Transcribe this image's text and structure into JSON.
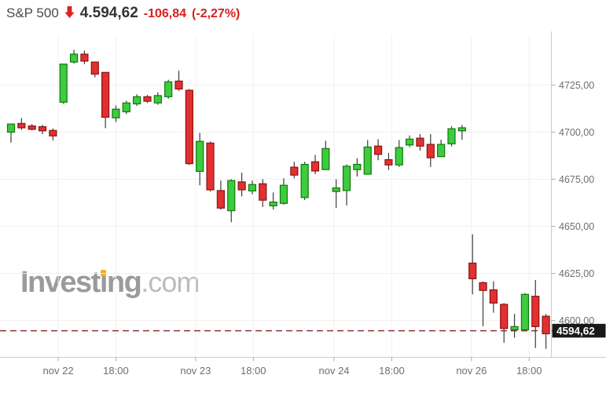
{
  "header": {
    "symbol": "S&P 500",
    "price": "4.594,62",
    "change": "-106,84",
    "change_pct": "(-2,27%)",
    "direction": "down"
  },
  "watermark": {
    "part1": "Invest",
    "accent_letter": "i",
    "part2": "ng",
    "suffix": ".com"
  },
  "colors": {
    "up_fill": "#3ecb3e",
    "up_stroke": "#0d7a0d",
    "down_fill": "#e23030",
    "down_stroke": "#8c1313",
    "wick": "#3c3c3c",
    "grid": "#f0f0f0",
    "axis": "#cccccc",
    "tick": "#aaaaaa",
    "label": "#6e6e6e",
    "dashed_line": "#8a3434",
    "marker_bg": "#191919",
    "marker_text": "#ffffff",
    "header_change": "#d91e1e",
    "arrow": "#e01f1f"
  },
  "chart_data": {
    "type": "candlestick",
    "title": "S&P 500 hourly candlestick chart",
    "y_ticks": [
      {
        "value": 4725,
        "label": "4725,00"
      },
      {
        "value": 4700,
        "label": "4700,00"
      },
      {
        "value": 4675,
        "label": "4675,00"
      },
      {
        "value": 4650,
        "label": "4650,00"
      },
      {
        "value": 4625,
        "label": "4625,00"
      },
      {
        "value": 4600,
        "label": "4600,00"
      }
    ],
    "x_ticks": [
      {
        "label": "nov 22",
        "at": 4.5
      },
      {
        "label": "18:00",
        "at": 10.0
      },
      {
        "label": "nov 23",
        "at": 17.6
      },
      {
        "label": "18:00",
        "at": 23.1
      },
      {
        "label": "nov 24",
        "at": 30.8
      },
      {
        "label": "18:00",
        "at": 36.3
      },
      {
        "label": "nov 26",
        "at": 43.9
      },
      {
        "label": "18:00",
        "at": 49.4
      }
    ],
    "y_axis": {
      "top_price": 4751.4,
      "bottom_price": 4580.5
    },
    "grid": true,
    "legend": "none",
    "current_price": 4594.62,
    "current_price_label": "4594,62",
    "candles_format": [
      "open",
      "high",
      "low",
      "close"
    ],
    "candles": [
      [
        4700.0,
        4704.3,
        4694.4,
        4704.3
      ],
      [
        4704.6,
        4707.5,
        4701.2,
        4702.3
      ],
      [
        4703.3,
        4704.3,
        4700.9,
        4701.5
      ],
      [
        4702.9,
        4703.9,
        4698.9,
        4700.7
      ],
      [
        4700.9,
        4702.0,
        4695.6,
        4698.0
      ],
      [
        4715.9,
        4736.1,
        4715.0,
        4736.1
      ],
      [
        4737.2,
        4743.7,
        4736.4,
        4741.4
      ],
      [
        4741.4,
        4743.3,
        4736.1,
        4737.7
      ],
      [
        4737.2,
        4737.2,
        4729.1,
        4730.8
      ],
      [
        4731.7,
        4731.7,
        4702.1,
        4707.9
      ],
      [
        4707.6,
        4714.2,
        4705.4,
        4712.2
      ],
      [
        4710.8,
        4716.7,
        4709.6,
        4715.5
      ],
      [
        4715.0,
        4720.1,
        4713.9,
        4718.8
      ],
      [
        4718.8,
        4719.7,
        4715.5,
        4716.4
      ],
      [
        4715.5,
        4721.1,
        4714.5,
        4719.4
      ],
      [
        4718.8,
        4727.8,
        4717.7,
        4726.7
      ],
      [
        4727.1,
        4732.6,
        4721.9,
        4722.9
      ],
      [
        4722.2,
        4722.9,
        4682.5,
        4683.3
      ],
      [
        4679.2,
        4699.6,
        4671.8,
        4695.1
      ],
      [
        4694.2,
        4695.1,
        4668.4,
        4669.4
      ],
      [
        4669.0,
        4674.3,
        4658.9,
        4659.7
      ],
      [
        4658.3,
        4675.0,
        4652.2,
        4674.3
      ],
      [
        4673.6,
        4678.5,
        4665.9,
        4669.4
      ],
      [
        4668.8,
        4674.3,
        4667.0,
        4672.2
      ],
      [
        4672.6,
        4675.0,
        4660.3,
        4663.9
      ],
      [
        4660.9,
        4668.0,
        4659.0,
        4662.9
      ],
      [
        4662.2,
        4675.5,
        4661.5,
        4671.8
      ],
      [
        4681.4,
        4684.3,
        4675.5,
        4677.2
      ],
      [
        4665.3,
        4684.3,
        4664.0,
        4682.9
      ],
      [
        4684.3,
        4687.9,
        4677.7,
        4679.4
      ],
      [
        4680.1,
        4695.4,
        4680.1,
        4691.3
      ],
      [
        4668.5,
        4675.0,
        4659.7,
        4670.4
      ],
      [
        4669.0,
        4682.9,
        4661.1,
        4681.9
      ],
      [
        4680.1,
        4686.1,
        4676.4,
        4682.9
      ],
      [
        4677.7,
        4695.8,
        4677.7,
        4692.1
      ],
      [
        4692.6,
        4696.3,
        4685.1,
        4688.2
      ],
      [
        4685.4,
        4689.0,
        4679.9,
        4682.6
      ],
      [
        4682.6,
        4695.8,
        4681.5,
        4691.8
      ],
      [
        4693.2,
        4698.2,
        4692.1,
        4696.3
      ],
      [
        4696.8,
        4699.0,
        4690.2,
        4692.6
      ],
      [
        4693.5,
        4699.0,
        4681.5,
        4686.4
      ],
      [
        4687.0,
        4696.0,
        4687.0,
        4693.5
      ],
      [
        4693.8,
        4703.2,
        4692.4,
        4701.8
      ],
      [
        4700.7,
        4703.8,
        4696.0,
        4702.3
      ],
      [
        4630.5,
        4645.8,
        4613.9,
        4622.2
      ],
      [
        4620.1,
        4620.8,
        4597.0,
        4616.0
      ],
      [
        4616.3,
        4620.8,
        4604.2,
        4609.3
      ],
      [
        4608.6,
        4609.3,
        4588.2,
        4595.8
      ],
      [
        4595.1,
        4603.5,
        4590.9,
        4596.8
      ],
      [
        4595.1,
        4614.6,
        4594.4,
        4613.9
      ],
      [
        4612.9,
        4621.5,
        4585.4,
        4596.8
      ],
      [
        4602.3,
        4603.5,
        4585.0,
        4593.0
      ]
    ]
  }
}
